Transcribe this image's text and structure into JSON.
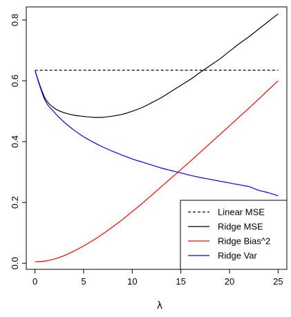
{
  "chart_data": {
    "type": "line",
    "title": "",
    "xlabel": "λ",
    "ylabel": "",
    "xlim": [
      0,
      25
    ],
    "ylim": [
      0,
      0.8
    ],
    "x_ticks": [
      0,
      5,
      10,
      15,
      20,
      25
    ],
    "x_tick_labels": [
      "0",
      "5",
      "10",
      "15",
      "20",
      "25"
    ],
    "y_ticks": [
      0.0,
      0.2,
      0.4,
      0.6,
      0.8
    ],
    "y_tick_labels": [
      "0.0",
      "0.2",
      "0.4",
      "0.6",
      "0.8"
    ],
    "grid": false,
    "legend_position": "bottom-right",
    "x": [
      0,
      1,
      2,
      3,
      4,
      5,
      6,
      7,
      8,
      9,
      10,
      11,
      12,
      13,
      14,
      15,
      16,
      17,
      18,
      19,
      20,
      21,
      22,
      23,
      24,
      25
    ],
    "series": [
      {
        "name": "Linear MSE",
        "color": "#000000",
        "dash": "dashed",
        "values": [
          0.635,
          0.635,
          0.635,
          0.635,
          0.635,
          0.635,
          0.635,
          0.635,
          0.635,
          0.635,
          0.635,
          0.635,
          0.635,
          0.635,
          0.635,
          0.635,
          0.635,
          0.635,
          0.635,
          0.635,
          0.635,
          0.635,
          0.635,
          0.635,
          0.635,
          0.635
        ]
      },
      {
        "name": "Ridge MSE",
        "color": "#000000",
        "dash": "solid",
        "values": [
          0.633,
          0.545,
          0.51,
          0.495,
          0.487,
          0.483,
          0.48,
          0.48,
          0.484,
          0.49,
          0.5,
          0.512,
          0.528,
          0.545,
          0.565,
          0.585,
          0.605,
          0.628,
          0.65,
          0.672,
          0.697,
          0.722,
          0.745,
          0.77,
          0.795,
          0.82
        ]
      },
      {
        "name": "Ridge Bias^2",
        "color": "#ff0000",
        "dash": "solid",
        "values": [
          0.005,
          0.007,
          0.014,
          0.025,
          0.04,
          0.057,
          0.076,
          0.097,
          0.12,
          0.144,
          0.17,
          0.196,
          0.224,
          0.252,
          0.28,
          0.308,
          0.336,
          0.365,
          0.394,
          0.423,
          0.452,
          0.481,
          0.51,
          0.54,
          0.57,
          0.6
        ]
      },
      {
        "name": "Ridge Var",
        "color": "#0000ff",
        "dash": "solid",
        "values": [
          0.633,
          0.538,
          0.496,
          0.464,
          0.438,
          0.416,
          0.398,
          0.382,
          0.368,
          0.355,
          0.343,
          0.333,
          0.323,
          0.313,
          0.305,
          0.297,
          0.289,
          0.282,
          0.276,
          0.27,
          0.264,
          0.258,
          0.252,
          0.24,
          0.232,
          0.222
        ]
      }
    ]
  }
}
